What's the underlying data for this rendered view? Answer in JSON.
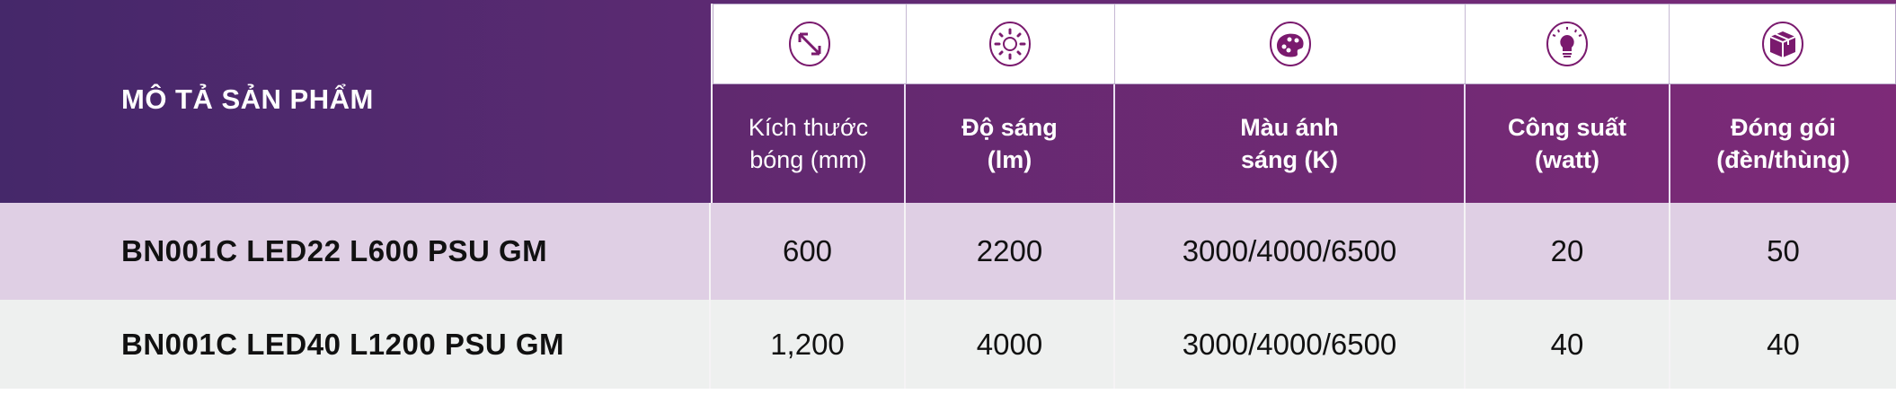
{
  "header": {
    "title": "MÔ TẢ SẢN PHẨM",
    "columns": [
      {
        "icon": "resize-diagonal-icon",
        "label_line1": "Kích thước",
        "label_line2": "bóng (mm)"
      },
      {
        "icon": "brightness-sun-icon",
        "label_line1": "Độ sáng",
        "label_line2": "(lm)"
      },
      {
        "icon": "color-palette-icon",
        "label_line1": "Màu ánh",
        "label_line2": "sáng (K)"
      },
      {
        "icon": "light-bulb-icon",
        "label_line1": "Công suất",
        "label_line2": "(watt)"
      },
      {
        "icon": "package-box-icon",
        "label_line1": "Đóng gói",
        "label_line2": "(đèn/thùng)"
      }
    ]
  },
  "rows": [
    {
      "product": "BN001C LED22 L600 PSU GM",
      "size": "600",
      "lumen": "2200",
      "color_temp": "3000/4000/6500",
      "power": "20",
      "packing": "50"
    },
    {
      "product": "BN001C LED40 L1200 PSU GM",
      "size": "1,200",
      "lumen": "4000",
      "color_temp": "3000/4000/6500",
      "power": "40",
      "packing": "40"
    }
  ],
  "colors": {
    "brand_purple": "#5c2a72",
    "icon_purple": "#7a1a6e",
    "row_odd": "#dfcfe4",
    "row_even": "#eef0ef"
  }
}
